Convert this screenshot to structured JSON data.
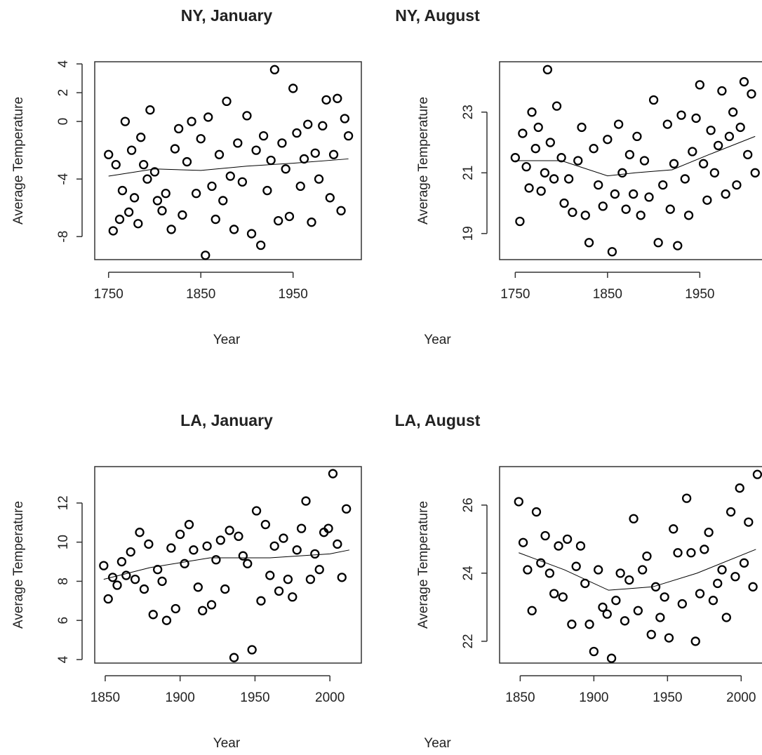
{
  "chart_data": [
    {
      "type": "scatter",
      "title": "NY, January",
      "xlabel": "Year",
      "ylabel": "Average Temperature",
      "color": "#000000",
      "x": [
        1750,
        1755,
        1758,
        1762,
        1765,
        1768,
        1772,
        1775,
        1778,
        1782,
        1785,
        1788,
        1792,
        1795,
        1800,
        1803,
        1808,
        1812,
        1818,
        1822,
        1826,
        1830,
        1835,
        1840,
        1845,
        1850,
        1855,
        1858,
        1862,
        1866,
        1870,
        1874,
        1878,
        1882,
        1886,
        1890,
        1895,
        1900,
        1905,
        1910,
        1915,
        1918,
        1922,
        1926,
        1930,
        1934,
        1938,
        1942,
        1946,
        1950,
        1954,
        1958,
        1962,
        1966,
        1970,
        1974,
        1978,
        1982,
        1986,
        1990,
        1994,
        1998,
        2002,
        2006,
        2010
      ],
      "values": [
        -2.3,
        -7.6,
        -3,
        -6.8,
        -4.8,
        0,
        -6.3,
        -2,
        -5.3,
        -7.1,
        -1.1,
        -3,
        -4,
        0.8,
        -3.5,
        -5.5,
        -6.2,
        -5,
        -7.5,
        -1.9,
        -0.5,
        -6.5,
        -2.8,
        0,
        -5,
        -1.2,
        -9.3,
        0.3,
        -4.5,
        -6.8,
        -2.3,
        -5.5,
        1.4,
        -3.8,
        -7.5,
        -1.5,
        -4.2,
        0.4,
        -7.8,
        -2,
        -8.6,
        -1,
        -4.8,
        -2.7,
        3.6,
        -6.9,
        -1.5,
        -3.3,
        -6.6,
        2.3,
        -0.8,
        -4.5,
        -2.6,
        -0.2,
        -7,
        -2.2,
        -4,
        -0.3,
        1.5,
        -5.3,
        -2.3,
        1.6,
        -6.2,
        0.2,
        -1
      ],
      "trend": {
        "x": [
          1750,
          1800,
          1850,
          1900,
          1950,
          2010
        ],
        "values": [
          -3.8,
          -3.3,
          -3.4,
          -3.1,
          -2.9,
          -2.6
        ]
      },
      "xlim": [
        1735,
        2024
      ],
      "xticks": [
        1750,
        1850,
        1950
      ],
      "ylim": [
        -9.6,
        4.15
      ],
      "yticks": [
        -8,
        -4,
        0,
        2,
        4
      ]
    },
    {
      "type": "scatter",
      "title": "NY, August",
      "xlabel": "Year",
      "ylabel": "Average Temperature",
      "color": "#000000",
      "x": [
        1750,
        1755,
        1758,
        1762,
        1765,
        1768,
        1772,
        1775,
        1778,
        1782,
        1785,
        1788,
        1792,
        1795,
        1800,
        1803,
        1808,
        1812,
        1818,
        1822,
        1826,
        1830,
        1835,
        1840,
        1845,
        1850,
        1855,
        1858,
        1862,
        1866,
        1870,
        1874,
        1878,
        1882,
        1886,
        1890,
        1895,
        1900,
        1905,
        1910,
        1915,
        1918,
        1922,
        1926,
        1930,
        1934,
        1938,
        1942,
        1946,
        1950,
        1954,
        1958,
        1962,
        1966,
        1970,
        1974,
        1978,
        1982,
        1986,
        1990,
        1994,
        1998,
        2002,
        2006,
        2010
      ],
      "values": [
        21.5,
        19.4,
        22.3,
        21.2,
        20.5,
        23,
        21.8,
        22.5,
        20.4,
        21,
        24.4,
        22,
        20.8,
        23.2,
        21.5,
        20,
        20.8,
        19.7,
        21.4,
        22.5,
        19.6,
        18.7,
        21.8,
        20.6,
        19.9,
        22.1,
        18.4,
        20.3,
        22.6,
        21,
        19.8,
        21.6,
        20.3,
        22.2,
        19.6,
        21.4,
        20.2,
        23.4,
        18.7,
        20.6,
        22.6,
        19.8,
        21.3,
        18.6,
        22.9,
        20.8,
        19.6,
        21.7,
        22.8,
        23.9,
        21.3,
        20.1,
        22.4,
        21,
        21.9,
        23.7,
        20.3,
        22.2,
        23,
        20.6,
        22.5,
        24,
        21.6,
        23.6,
        21
      ],
      "trend": {
        "x": [
          1750,
          1800,
          1850,
          1880,
          1920,
          1960,
          2010
        ],
        "values": [
          21.4,
          21.4,
          20.9,
          21.0,
          21.1,
          21.6,
          22.2
        ]
      },
      "xlim": [
        1733,
        2022
      ],
      "xticks": [
        1750,
        1850,
        1950
      ],
      "ylim": [
        18.14,
        24.66
      ],
      "yticks": [
        19,
        21,
        23
      ]
    },
    {
      "type": "scatter",
      "title": "LA, January",
      "xlabel": "Year",
      "ylabel": "Average Temperature",
      "color": "#000000",
      "x": [
        1849,
        1852,
        1855,
        1858,
        1861,
        1864,
        1867,
        1870,
        1873,
        1876,
        1879,
        1882,
        1885,
        1888,
        1891,
        1894,
        1897,
        1900,
        1903,
        1906,
        1909,
        1912,
        1915,
        1918,
        1921,
        1924,
        1927,
        1930,
        1933,
        1936,
        1939,
        1942,
        1945,
        1948,
        1951,
        1954,
        1957,
        1960,
        1963,
        1966,
        1969,
        1972,
        1975,
        1978,
        1981,
        1984,
        1987,
        1990,
        1993,
        1996,
        1999,
        2002,
        2005,
        2008,
        2011
      ],
      "values": [
        8.8,
        7.1,
        8.2,
        7.8,
        9,
        8.3,
        9.5,
        8.1,
        10.5,
        7.6,
        9.9,
        6.3,
        8.6,
        8,
        6,
        9.7,
        6.6,
        10.4,
        8.9,
        10.9,
        9.6,
        7.7,
        6.5,
        9.8,
        6.8,
        9.1,
        10.1,
        7.6,
        10.6,
        4.1,
        10.3,
        9.3,
        8.9,
        4.5,
        11.6,
        7,
        10.9,
        8.3,
        9.8,
        7.5,
        10.2,
        8.1,
        7.2,
        9.6,
        10.7,
        12.1,
        8.1,
        9.4,
        8.6,
        10.5,
        10.7,
        13.5,
        9.9,
        8.2,
        11.7
      ],
      "trend": {
        "x": [
          1849,
          1880,
          1920,
          1960,
          2000,
          2013
        ],
        "values": [
          8.1,
          8.7,
          9.2,
          9.2,
          9.4,
          9.6
        ]
      },
      "xlim": [
        1843,
        2021
      ],
      "xticks": [
        1850,
        1900,
        1950,
        2000
      ],
      "ylim": [
        3.82,
        13.86
      ],
      "yticks": [
        4,
        6,
        8,
        10,
        12
      ]
    },
    {
      "type": "scatter",
      "title": "LA, August",
      "xlabel": "Year",
      "ylabel": "Average Temperature",
      "color": "#000000",
      "x": [
        1849,
        1852,
        1855,
        1858,
        1861,
        1864,
        1867,
        1870,
        1873,
        1876,
        1879,
        1882,
        1885,
        1888,
        1891,
        1894,
        1897,
        1900,
        1903,
        1906,
        1909,
        1912,
        1915,
        1918,
        1921,
        1924,
        1927,
        1930,
        1933,
        1936,
        1939,
        1942,
        1945,
        1948,
        1951,
        1954,
        1957,
        1960,
        1963,
        1966,
        1969,
        1972,
        1975,
        1978,
        1981,
        1984,
        1987,
        1990,
        1993,
        1996,
        1999,
        2002,
        2005,
        2008,
        2011
      ],
      "values": [
        26.1,
        24.9,
        24.1,
        22.9,
        25.8,
        24.3,
        25.1,
        24,
        23.4,
        24.8,
        23.3,
        25,
        22.5,
        24.2,
        24.8,
        23.7,
        22.5,
        21.7,
        24.1,
        23,
        22.8,
        21.5,
        23.2,
        24,
        22.6,
        23.8,
        25.6,
        22.9,
        24.1,
        24.5,
        22.2,
        23.6,
        22.7,
        23.3,
        22.1,
        25.3,
        24.6,
        23.1,
        26.2,
        24.6,
        22,
        23.4,
        24.7,
        25.2,
        23.2,
        23.7,
        24.1,
        22.7,
        25.8,
        23.9,
        26.5,
        24.3,
        25.5,
        23.6,
        26.9
      ],
      "trend": {
        "x": [
          1849,
          1880,
          1910,
          1940,
          1970,
          2010
        ],
        "values": [
          24.6,
          24.1,
          23.5,
          23.6,
          24.0,
          24.7
        ]
      },
      "xlim": [
        1836,
        2017
      ],
      "xticks": [
        1850,
        1900,
        1950,
        2000
      ],
      "ylim": [
        21.36,
        27.13
      ],
      "yticks": [
        22,
        24,
        26
      ]
    }
  ]
}
